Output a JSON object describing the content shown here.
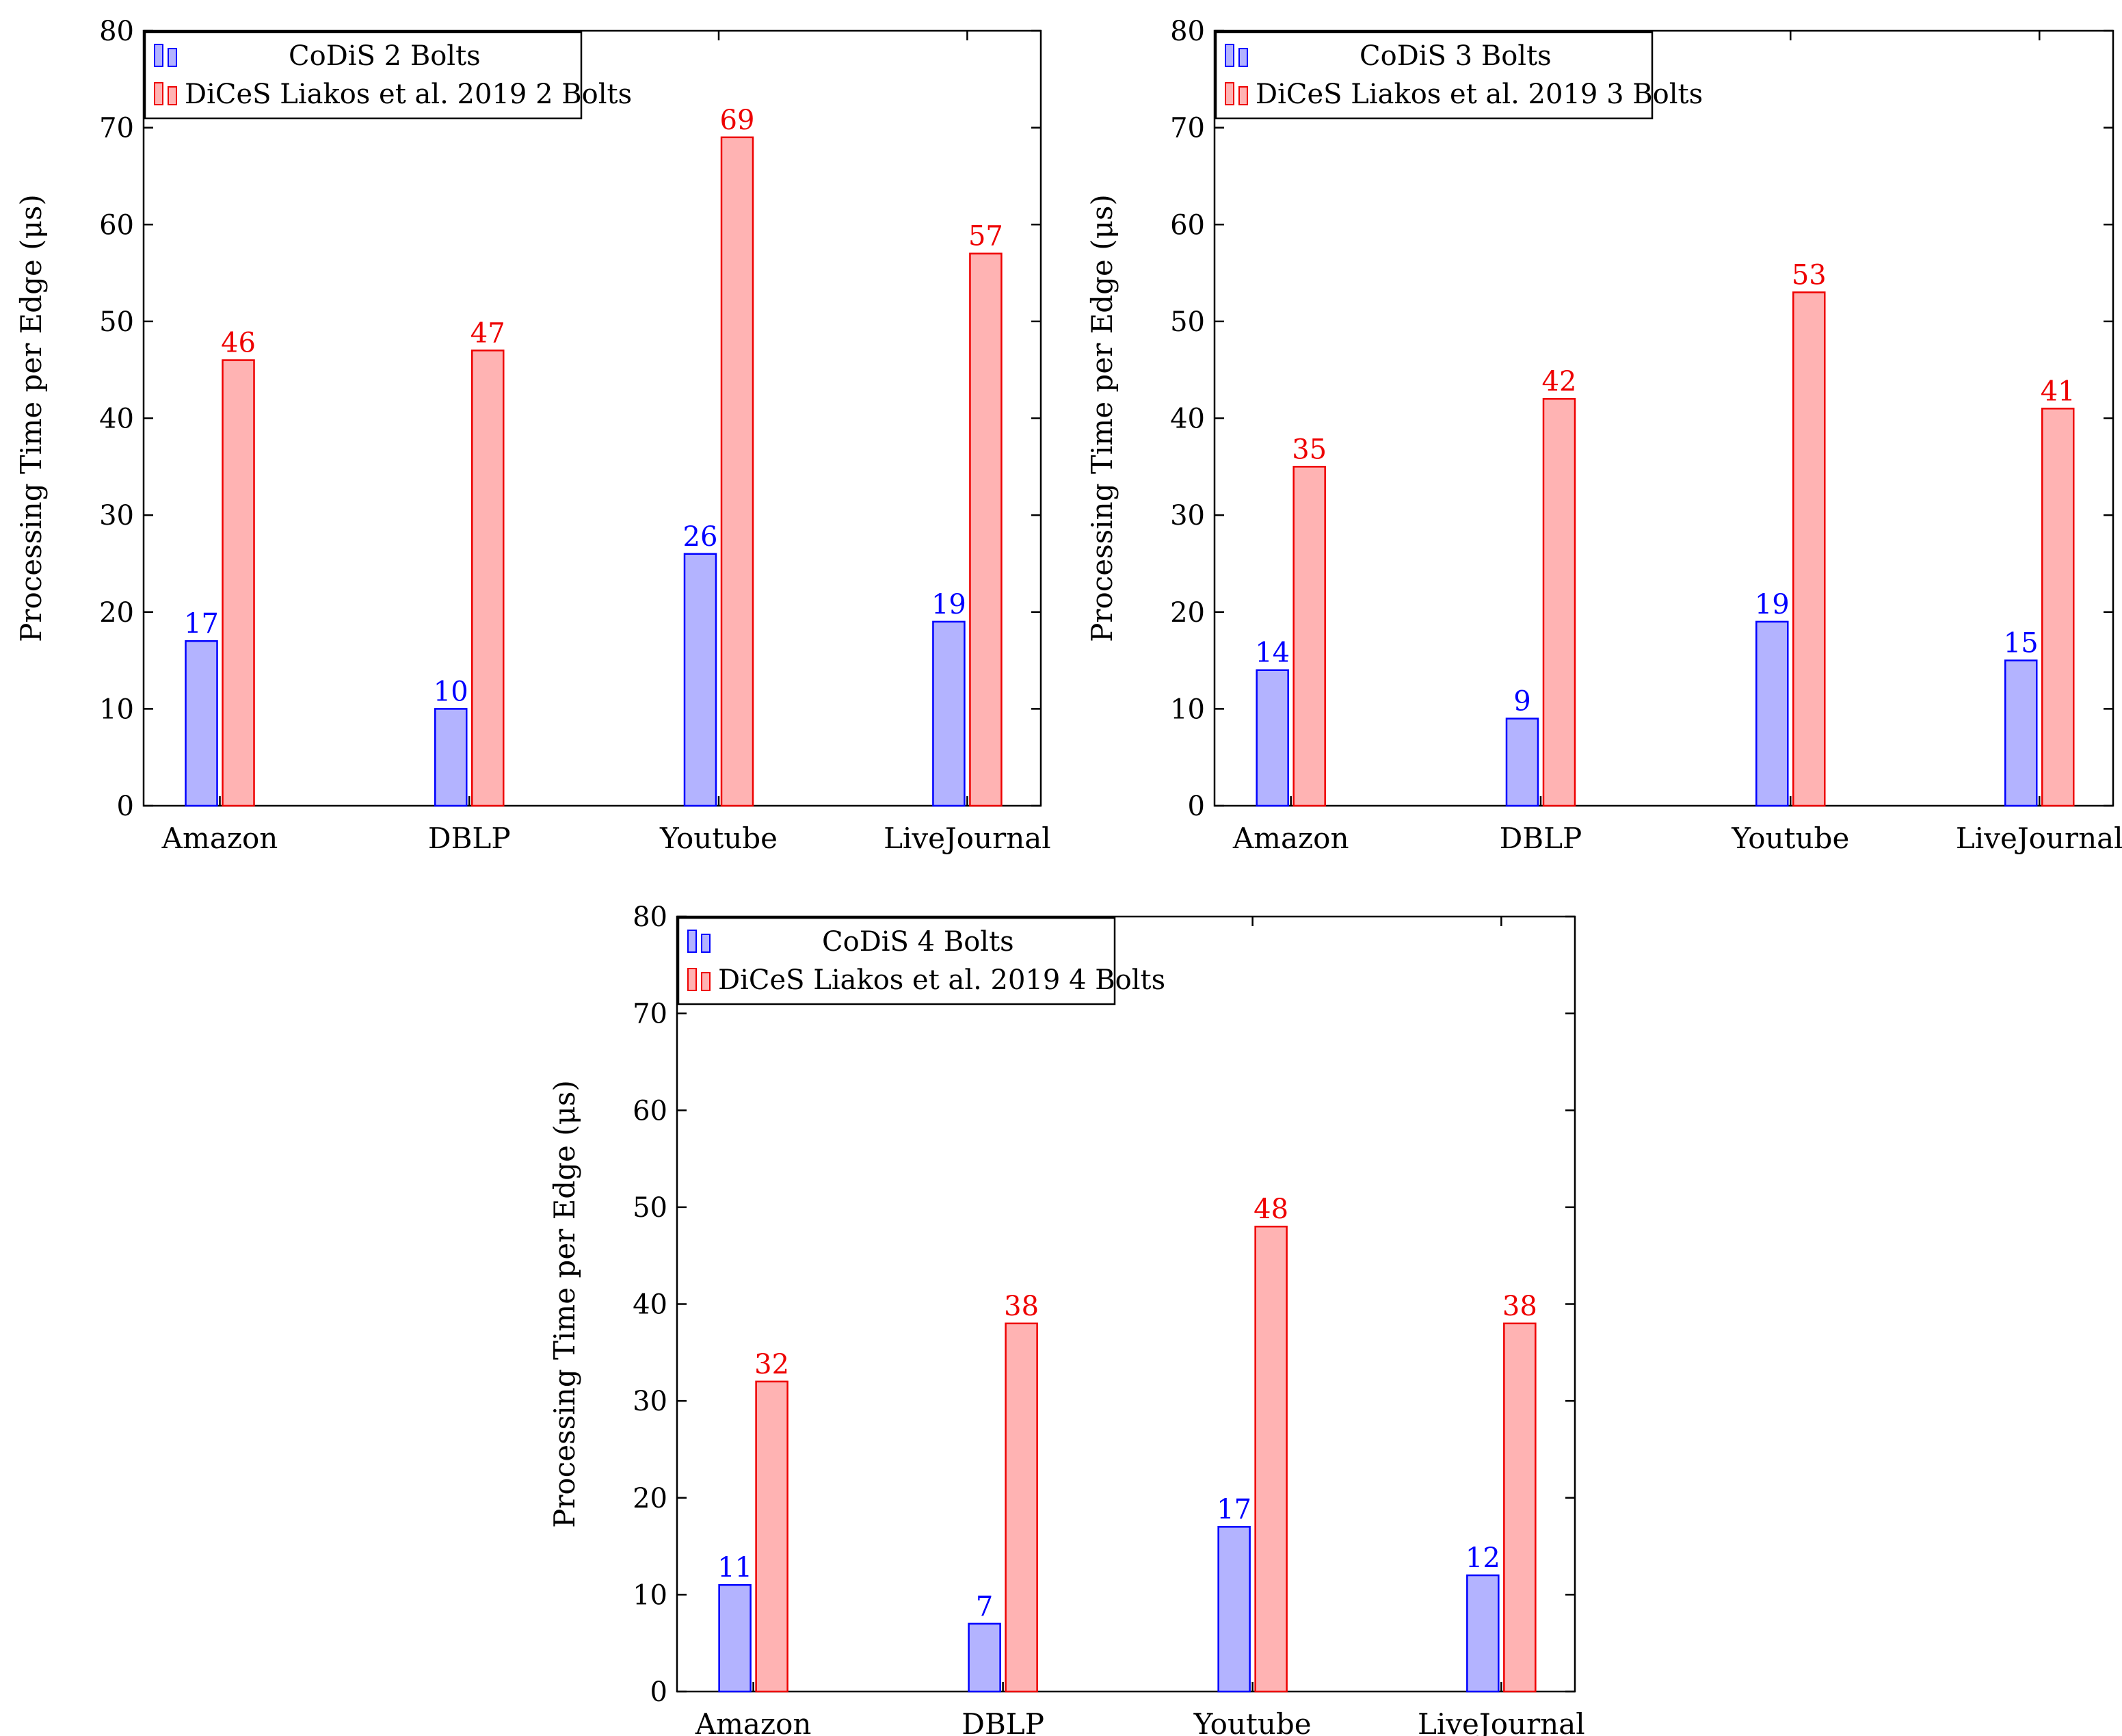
{
  "colors": {
    "series_a_fill": "#b3b3ff",
    "series_a_stroke": "#0000ff",
    "series_b_fill": "#ffb3b3",
    "series_b_stroke": "#ee0000",
    "axis": "#000000"
  },
  "chart_data": [
    {
      "type": "bar",
      "title": "",
      "xlabel": "",
      "ylabel": "Processing Time per Edge (μs)",
      "ylim": [
        0,
        80
      ],
      "yticks": [
        0,
        10,
        20,
        30,
        40,
        50,
        60,
        70,
        80
      ],
      "grid": false,
      "legend_position": "top-left",
      "categories": [
        "Amazon",
        "DBLP",
        "Youtube",
        "LiveJournal"
      ],
      "series": [
        {
          "name": "CoDiS 2 Bolts",
          "values": [
            17,
            10,
            26,
            19
          ]
        },
        {
          "name": "DiCeS Liakos et al. 2019 2 Bolts",
          "values": [
            46,
            47,
            69,
            57
          ]
        }
      ]
    },
    {
      "type": "bar",
      "title": "",
      "xlabel": "",
      "ylabel": "Processing Time per Edge (μs)",
      "ylim": [
        0,
        80
      ],
      "yticks": [
        0,
        10,
        20,
        30,
        40,
        50,
        60,
        70,
        80
      ],
      "grid": false,
      "legend_position": "top-left",
      "categories": [
        "Amazon",
        "DBLP",
        "Youtube",
        "LiveJournal"
      ],
      "series": [
        {
          "name": "CoDiS 3 Bolts",
          "values": [
            14,
            9,
            19,
            15
          ]
        },
        {
          "name": "DiCeS Liakos et al. 2019 3 Bolts",
          "values": [
            35,
            42,
            53,
            41
          ]
        }
      ]
    },
    {
      "type": "bar",
      "title": "",
      "xlabel": "",
      "ylabel": "Processing Time per Edge (μs)",
      "ylim": [
        0,
        80
      ],
      "yticks": [
        0,
        10,
        20,
        30,
        40,
        50,
        60,
        70,
        80
      ],
      "grid": false,
      "legend_position": "top-left",
      "categories": [
        "Amazon",
        "DBLP",
        "Youtube",
        "LiveJournal"
      ],
      "series": [
        {
          "name": "CoDiS 4 Bolts",
          "values": [
            11,
            7,
            17,
            12
          ]
        },
        {
          "name": "DiCeS Liakos et al. 2019 4 Bolts",
          "values": [
            32,
            38,
            48,
            38
          ]
        }
      ]
    }
  ]
}
